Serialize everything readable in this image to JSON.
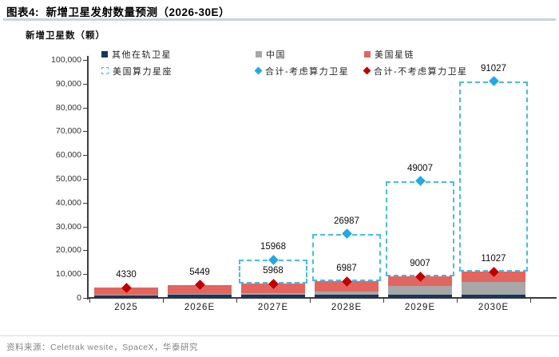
{
  "figure": {
    "title": "图表4:  新增卫星发射数量预测（2026-30E）",
    "source": "资料来源：Celetrak wesite，SpaceX，华泰研究"
  },
  "legend": {
    "rows": [
      [
        {
          "icon": "square-swatch-icon",
          "swatch": "square",
          "color": "#17365D",
          "label": "其他在轨卫星"
        },
        {
          "icon": "square-swatch-icon",
          "swatch": "square",
          "color": "#A7A7A7",
          "label": "中国"
        },
        {
          "icon": "square-swatch-icon",
          "swatch": "square",
          "color": "#E2665F",
          "label": "美国星链"
        }
      ],
      [
        {
          "icon": "dashed-square-swatch-icon",
          "swatch": "dashed",
          "color": "#44BCEC",
          "label": "美国算力星座"
        },
        {
          "icon": "diamond-swatch-icon",
          "swatch": "diamond",
          "color": "#25A9E0",
          "label": "合计-考虑算力卫星"
        },
        {
          "icon": "diamond-swatch-icon",
          "swatch": "diamond",
          "color": "#C00000",
          "label": "合计-不考虑算力卫星"
        }
      ]
    ]
  },
  "chart_data": {
    "type": "bar",
    "stacked": true,
    "title": "新增卫星发射数量预测（2026-30E）",
    "ylabel": "新增卫星数（颗）",
    "xlabel": "",
    "categories": [
      "2025",
      "2026E",
      "2027E",
      "2028E",
      "2029E",
      "2030E"
    ],
    "series": [
      {
        "key": "other-in-orbit",
        "name": "其他在轨卫星",
        "color": "#17365D",
        "style": "solid",
        "values": [
          1200,
          1200,
          1200,
          1200,
          1200,
          1200
        ]
      },
      {
        "key": "china",
        "name": "中国",
        "color": "#A7A7A7",
        "style": "solid",
        "values": [
          130,
          500,
          800,
          1500,
          3800,
          5400
        ]
      },
      {
        "key": "us-starlink",
        "name": "美国星链",
        "color": "#E2665F",
        "style": "solid",
        "values": [
          3000,
          3749,
          3968,
          4287,
          4007,
          4427
        ]
      },
      {
        "key": "us-compute-constellation",
        "name": "美国算力星座",
        "color": "#44BCEC",
        "style": "dashed-outline",
        "values": [
          0,
          0,
          10000,
          20000,
          40000,
          80000
        ]
      }
    ],
    "markers": [
      {
        "key": "total-with-compute",
        "name": "合计-考虑算力卫星",
        "shape": "diamond",
        "color": "#25A9E0",
        "values": [
          4330,
          5449,
          15968,
          26987,
          49007,
          91027
        ]
      },
      {
        "key": "total-without-compute",
        "name": "合计-不考虑算力卫星",
        "shape": "diamond",
        "color": "#C00000",
        "values": [
          4330,
          5449,
          5968,
          6987,
          9007,
          11027
        ]
      }
    ],
    "totals_without_compute": [
      4330,
      5449,
      5968,
      6987,
      9007,
      11027
    ],
    "totals_with_compute": [
      4330,
      5449,
      15968,
      26987,
      49007,
      91027
    ],
    "value_labels_top": [
      "4330",
      "5449",
      "15968",
      "26987",
      "49007",
      "91027"
    ],
    "value_labels_inner": [
      null,
      null,
      "5968",
      "6987",
      "9007",
      "11027"
    ],
    "ylim": [
      0,
      100000
    ],
    "ytick_step": 10000,
    "yticks": [
      "0",
      "10,000",
      "20,000",
      "30,000",
      "40,000",
      "50,000",
      "60,000",
      "70,000",
      "80,000",
      "90,000",
      "100,000"
    ],
    "grid": false,
    "legend_position": "top"
  },
  "colors": {
    "axis": "#3C3C3C",
    "title_rule": "#C8D2DC",
    "source_rule": "#D9D9D9",
    "other_satellites": "#17365D",
    "china": "#A7A7A7",
    "starlink": "#E2665F",
    "compute_constellation": "#44BCEC",
    "total_with_marker": "#25A9E0",
    "total_without_marker": "#C00000"
  }
}
